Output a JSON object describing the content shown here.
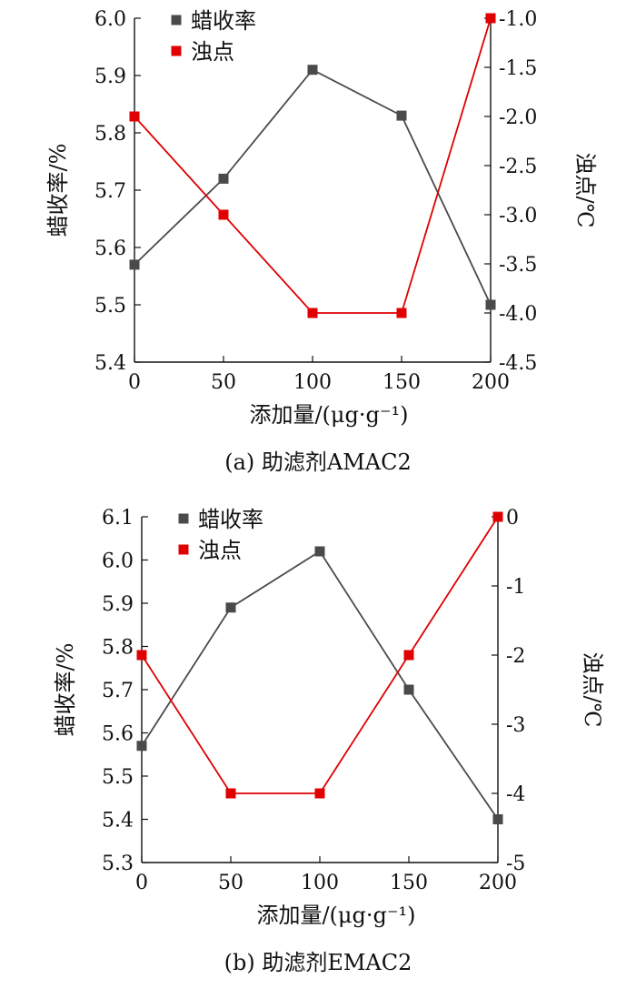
{
  "chart_data": [
    {
      "type": "line",
      "caption": "(a) 助滤剂AMAC2",
      "xlabel": "添加量/(μg·g⁻¹)",
      "ylabel_left": "蜡收率/%",
      "ylabel_right": "浊点/℃",
      "x": [
        0,
        50,
        100,
        150,
        200
      ],
      "xlim": [
        0,
        200
      ],
      "xticks": [
        "0",
        "50",
        "100",
        "150",
        "200"
      ],
      "ylim_left": [
        5.4,
        6.0
      ],
      "yticks_left": [
        "5.4",
        "5.5",
        "5.6",
        "5.7",
        "5.8",
        "5.9",
        "6.0"
      ],
      "ylim_right": [
        -4.5,
        -1.0
      ],
      "yticks_right": [
        "-4.5",
        "-4.0",
        "-3.5",
        "-3.0",
        "-2.5",
        "-2.0",
        "-1.5",
        "-1.0"
      ],
      "legend": "top-left",
      "grid": false,
      "series": [
        {
          "name": "蜡收率",
          "axis": "left",
          "color": "#4a4a4a",
          "values": [
            5.57,
            5.72,
            5.91,
            5.83,
            5.5
          ]
        },
        {
          "name": "浊点",
          "axis": "right",
          "color": "#e00000",
          "values": [
            -2.0,
            -3.0,
            -4.0,
            -4.0,
            -1.0
          ]
        }
      ]
    },
    {
      "type": "line",
      "caption": "(b) 助滤剂EMAC2",
      "xlabel": "添加量/(μg·g⁻¹)",
      "ylabel_left": "蜡收率/%",
      "ylabel_right": "浊点/℃",
      "x": [
        0,
        50,
        100,
        150,
        200
      ],
      "xlim": [
        0,
        200
      ],
      "xticks": [
        "0",
        "50",
        "100",
        "150",
        "200"
      ],
      "ylim_left": [
        5.3,
        6.1
      ],
      "yticks_left": [
        "5.3",
        "5.4",
        "5.5",
        "5.6",
        "5.7",
        "5.8",
        "5.9",
        "6.0",
        "6.1"
      ],
      "ylim_right": [
        -5,
        0
      ],
      "yticks_right": [
        "-5",
        "-4",
        "-3",
        "-2",
        "-1",
        "0"
      ],
      "legend": "top-left",
      "grid": false,
      "series": [
        {
          "name": "蜡收率",
          "axis": "left",
          "color": "#4a4a4a",
          "values": [
            5.57,
            5.89,
            6.02,
            5.7,
            5.4
          ]
        },
        {
          "name": "浊点",
          "axis": "right",
          "color": "#e00000",
          "values": [
            -2,
            -4,
            -4,
            -2,
            0
          ]
        }
      ]
    }
  ]
}
